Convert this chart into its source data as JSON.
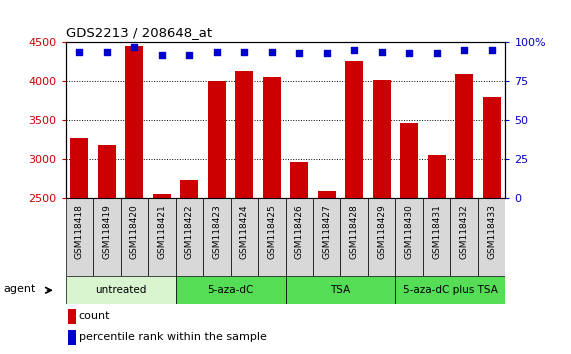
{
  "title": "GDS2213 / 208648_at",
  "samples": [
    "GSM118418",
    "GSM118419",
    "GSM118420",
    "GSM118421",
    "GSM118422",
    "GSM118423",
    "GSM118424",
    "GSM118425",
    "GSM118426",
    "GSM118427",
    "GSM118428",
    "GSM118429",
    "GSM118430",
    "GSM118431",
    "GSM118432",
    "GSM118433"
  ],
  "counts": [
    3270,
    3180,
    4460,
    2550,
    2730,
    4010,
    4140,
    4060,
    2970,
    2590,
    4260,
    4020,
    3460,
    3060,
    4090,
    3800
  ],
  "percentiles": [
    94,
    94,
    97,
    92,
    92,
    94,
    94,
    94,
    93,
    93,
    95,
    94,
    93,
    93,
    95,
    95
  ],
  "ylim_left": [
    2500,
    4500
  ],
  "ylim_right": [
    0,
    100
  ],
  "yticks_left": [
    2500,
    3000,
    3500,
    4000,
    4500
  ],
  "yticks_right": [
    0,
    25,
    50,
    75,
    100
  ],
  "bar_color": "#cc0000",
  "dot_color": "#0000cc",
  "group_data": [
    {
      "label": "untreated",
      "start": 0,
      "end": 4,
      "color": "#d8f5d0"
    },
    {
      "label": "5-aza-dC",
      "start": 4,
      "end": 8,
      "color": "#55dd55"
    },
    {
      "label": "TSA",
      "start": 8,
      "end": 12,
      "color": "#55dd55"
    },
    {
      "label": "5-aza-dC plus TSA",
      "start": 12,
      "end": 16,
      "color": "#55dd55"
    }
  ],
  "legend_count_label": "count",
  "legend_pct_label": "percentile rank within the sample",
  "agent_label": "agent",
  "title_color": "#000000",
  "background_color": "#ffffff",
  "tick_label_color_left": "#cc0000",
  "tick_label_color_right": "#0000cc"
}
